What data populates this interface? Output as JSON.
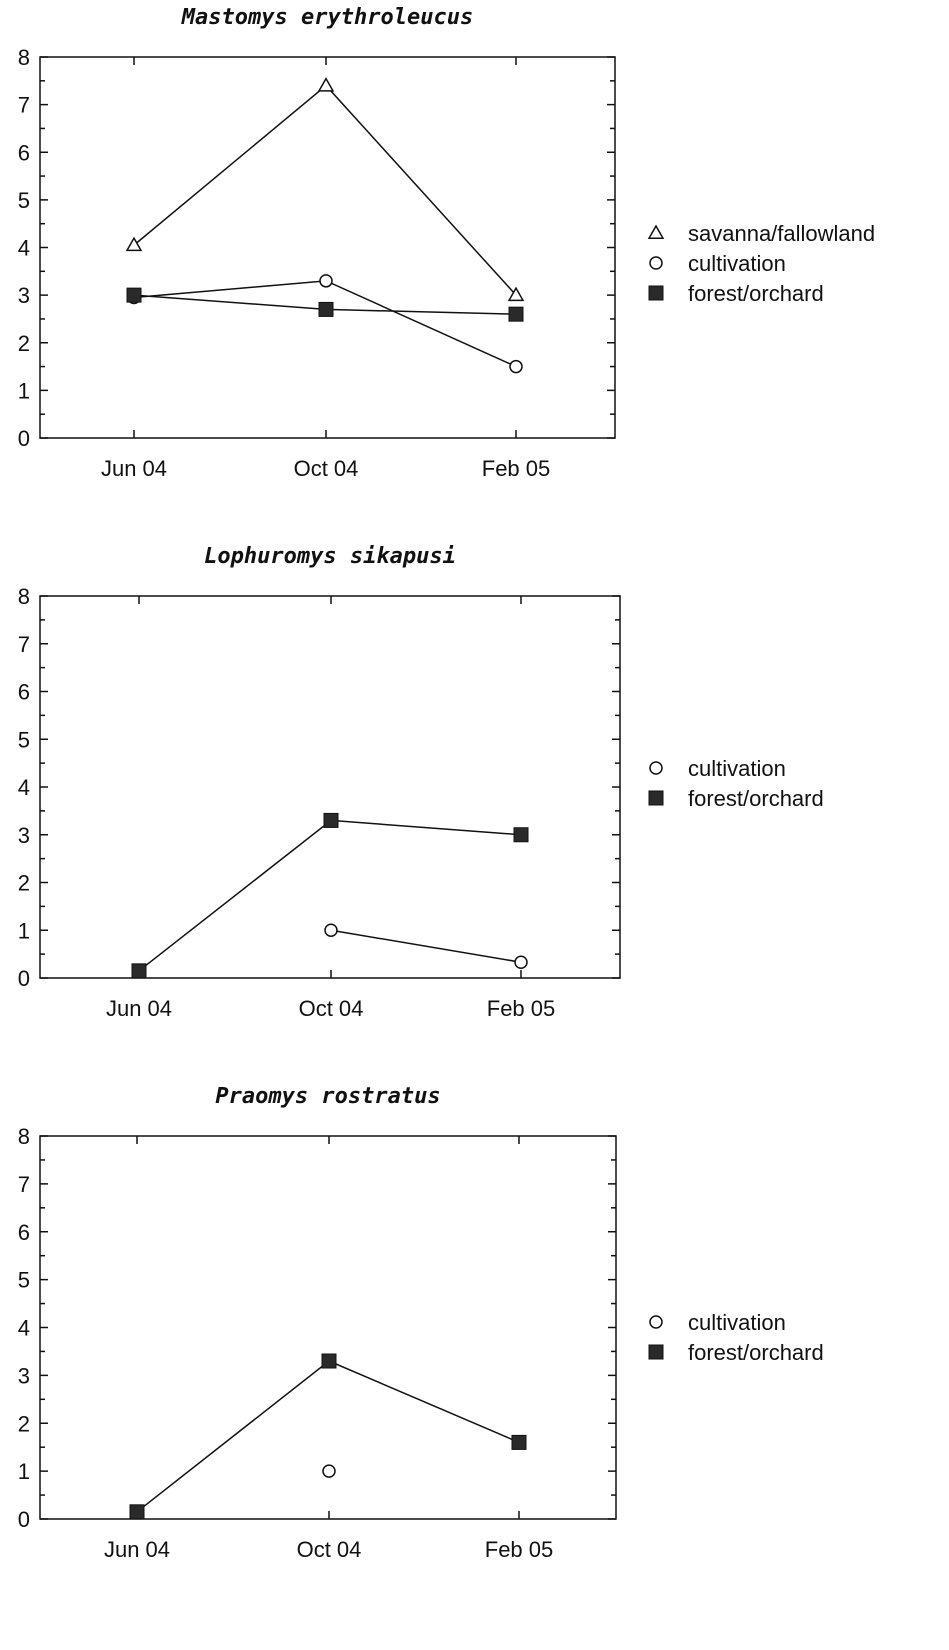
{
  "chart_data": [
    {
      "type": "line",
      "title": "Mastomys erythroleucus",
      "xlabel": "",
      "ylabel": "",
      "categories": [
        "Jun 04",
        "Oct 04",
        "Feb 05"
      ],
      "ylim": [
        0,
        8
      ],
      "yticks": [
        0,
        1,
        2,
        3,
        4,
        5,
        6,
        7,
        8
      ],
      "grid": false,
      "legend_position": "right",
      "series": [
        {
          "name": "savanna/fallowland",
          "marker": "triangle-open",
          "values": [
            4.05,
            7.4,
            3.0
          ]
        },
        {
          "name": "cultivation",
          "marker": "circle-open",
          "values": [
            2.95,
            3.3,
            1.5
          ]
        },
        {
          "name": "forest/orchard",
          "marker": "square-filled",
          "values": [
            3.0,
            2.7,
            2.6
          ]
        }
      ]
    },
    {
      "type": "line",
      "title": "Lophuromys sikapusi",
      "xlabel": "",
      "ylabel": "",
      "categories": [
        "Jun 04",
        "Oct 04",
        "Feb 05"
      ],
      "ylim": [
        0,
        8
      ],
      "yticks": [
        0,
        1,
        2,
        3,
        4,
        5,
        6,
        7,
        8
      ],
      "grid": false,
      "legend_position": "right",
      "series": [
        {
          "name": "cultivation",
          "marker": "circle-open",
          "values": [
            null,
            1.0,
            0.33
          ]
        },
        {
          "name": "forest/orchard",
          "marker": "square-filled",
          "values": [
            0.15,
            3.3,
            3.0
          ]
        }
      ]
    },
    {
      "type": "line",
      "title": "Praomys rostratus",
      "xlabel": "",
      "ylabel": "",
      "categories": [
        "Jun 04",
        "Oct 04",
        "Feb 05"
      ],
      "ylim": [
        0,
        8
      ],
      "yticks": [
        0,
        1,
        2,
        3,
        4,
        5,
        6,
        7,
        8
      ],
      "grid": false,
      "legend_position": "right",
      "series": [
        {
          "name": "cultivation",
          "marker": "circle-open",
          "values": [
            null,
            1.0,
            null
          ]
        },
        {
          "name": "forest/orchard",
          "marker": "square-filled",
          "values": [
            0.15,
            3.3,
            1.6
          ]
        }
      ]
    }
  ]
}
